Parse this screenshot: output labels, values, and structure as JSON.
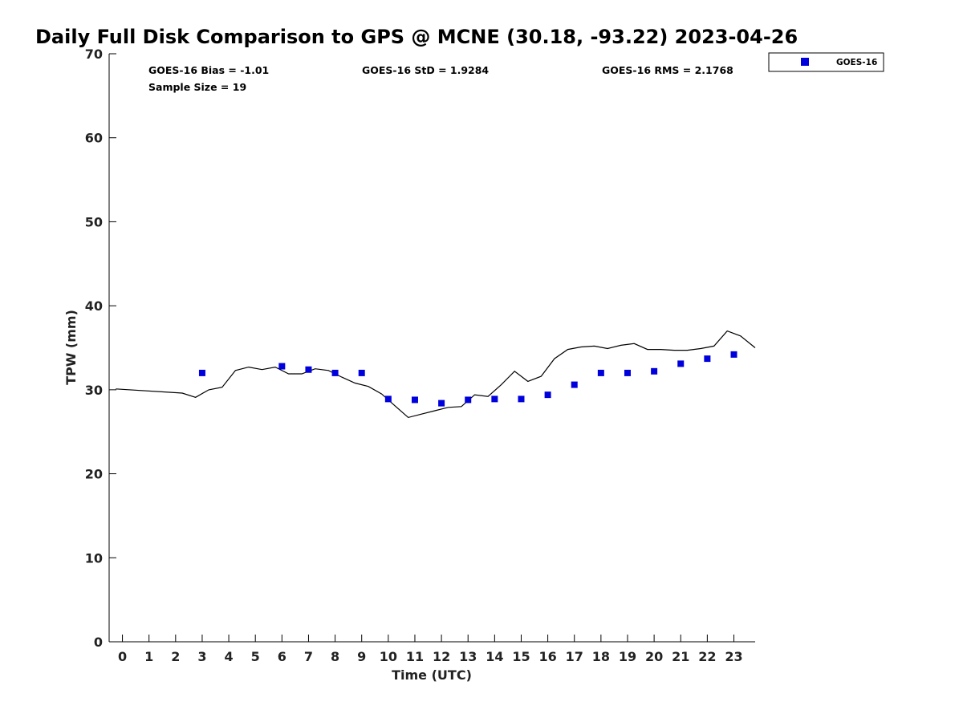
{
  "chart_data": {
    "type": "scatter",
    "title": "Daily Full Disk Comparison to GPS @ MCNE (30.18, -93.22) 2023-04-26",
    "xlabel": "Time (UTC)",
    "ylabel": "TPW (mm)",
    "xlim": [
      -0.5,
      23.8
    ],
    "ylim": [
      0,
      70
    ],
    "x_ticks": [
      0,
      1,
      2,
      3,
      4,
      5,
      6,
      7,
      8,
      9,
      10,
      11,
      12,
      13,
      14,
      15,
      16,
      17,
      18,
      19,
      20,
      21,
      22,
      23
    ],
    "y_ticks": [
      0,
      10,
      20,
      30,
      40,
      50,
      60,
      70
    ],
    "grid": false,
    "legend_position": "top-right-outside",
    "stats": {
      "bias": "GOES-16 Bias = -1.01",
      "std": "GOES-16 StD = 1.9284",
      "rms": "GOES-16 RMS = 2.1768",
      "sample": "Sample Size = 19"
    },
    "series": [
      {
        "name": "GOES-16",
        "kind": "marker",
        "color": "#0000dd",
        "points": [
          [
            3.0,
            32.0
          ],
          [
            6.0,
            32.8
          ],
          [
            7.0,
            32.4
          ],
          [
            8.0,
            32.0
          ],
          [
            9.0,
            32.0
          ],
          [
            10.0,
            28.9
          ],
          [
            11.0,
            28.8
          ],
          [
            12.0,
            28.4
          ],
          [
            13.0,
            28.8
          ],
          [
            14.0,
            28.9
          ],
          [
            15.0,
            28.9
          ],
          [
            16.0,
            29.4
          ],
          [
            17.0,
            30.6
          ],
          [
            18.0,
            32.0
          ],
          [
            19.0,
            32.0
          ],
          [
            20.0,
            32.2
          ],
          [
            21.0,
            33.1
          ],
          [
            22.0,
            33.7
          ],
          [
            23.0,
            34.2
          ]
        ]
      },
      {
        "kind": "line",
        "color": "#000000",
        "points": [
          [
            -0.25,
            30.1
          ],
          [
            2.25,
            29.6
          ],
          [
            2.75,
            29.1
          ],
          [
            3.25,
            30.0
          ],
          [
            3.75,
            30.3
          ],
          [
            4.25,
            32.3
          ],
          [
            4.75,
            32.7
          ],
          [
            5.25,
            32.4
          ],
          [
            5.75,
            32.7
          ],
          [
            6.25,
            31.9
          ],
          [
            6.75,
            31.9
          ],
          [
            7.25,
            32.5
          ],
          [
            7.75,
            32.3
          ],
          [
            8.25,
            31.5
          ],
          [
            8.75,
            30.8
          ],
          [
            9.25,
            30.4
          ],
          [
            9.75,
            29.5
          ],
          [
            10.25,
            28.1
          ],
          [
            10.75,
            26.7
          ],
          [
            11.25,
            27.1
          ],
          [
            11.75,
            27.5
          ],
          [
            12.25,
            27.9
          ],
          [
            12.75,
            28.0
          ],
          [
            13.25,
            29.4
          ],
          [
            13.75,
            29.2
          ],
          [
            14.25,
            30.6
          ],
          [
            14.75,
            32.2
          ],
          [
            15.25,
            31.0
          ],
          [
            15.75,
            31.6
          ],
          [
            16.25,
            33.7
          ],
          [
            16.75,
            34.8
          ],
          [
            17.25,
            35.1
          ],
          [
            17.75,
            35.2
          ],
          [
            18.25,
            34.9
          ],
          [
            18.75,
            35.3
          ],
          [
            19.25,
            35.5
          ],
          [
            19.75,
            34.8
          ],
          [
            20.25,
            34.8
          ],
          [
            20.75,
            34.7
          ],
          [
            21.25,
            34.7
          ],
          [
            21.75,
            34.9
          ],
          [
            22.25,
            35.2
          ],
          [
            22.75,
            37.0
          ],
          [
            23.25,
            36.4
          ],
          [
            23.8,
            35.0
          ]
        ]
      }
    ]
  }
}
